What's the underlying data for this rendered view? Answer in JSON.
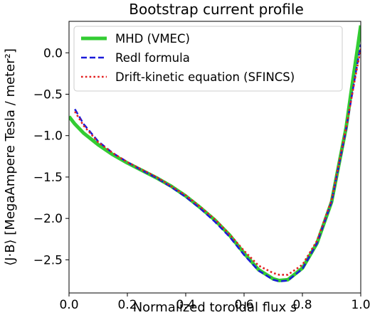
{
  "chart_data": {
    "type": "line",
    "title": "Bootstrap current profile",
    "xlabel_main": "Normalized toroidal flux ",
    "xlabel_var": "s",
    "ylabel": "⟨J·B⟩ [MegaAmpere Tesla / meter²]",
    "xlim": [
      0.0,
      1.0
    ],
    "ylim": [
      -2.9,
      0.38
    ],
    "xticks": [
      0.0,
      0.2,
      0.4,
      0.6,
      0.8,
      1.0
    ],
    "xtick_labels": [
      "0.0",
      "0.2",
      "0.4",
      "0.6",
      "0.8",
      "1.0"
    ],
    "yticks": [
      0.0,
      -0.5,
      -1.0,
      -1.5,
      -2.0,
      -2.5
    ],
    "ytick_labels": [
      "0.0",
      "−0.5",
      "−1.0",
      "−1.5",
      "−2.0",
      "−2.5"
    ],
    "grid": false,
    "legend_position": "top-right",
    "series": [
      {
        "name": "MHD (VMEC)",
        "color": "#33cc33",
        "style": "solid",
        "x": [
          0.0,
          0.02,
          0.05,
          0.1,
          0.15,
          0.2,
          0.25,
          0.3,
          0.35,
          0.4,
          0.45,
          0.5,
          0.55,
          0.6,
          0.65,
          0.7,
          0.72,
          0.75,
          0.8,
          0.85,
          0.9,
          0.95,
          0.97,
          0.99,
          1.0
        ],
        "y": [
          -0.77,
          -0.86,
          -0.97,
          -1.11,
          -1.23,
          -1.33,
          -1.42,
          -1.51,
          -1.61,
          -1.73,
          -1.87,
          -2.02,
          -2.2,
          -2.42,
          -2.62,
          -2.73,
          -2.75,
          -2.74,
          -2.6,
          -2.3,
          -1.8,
          -0.9,
          -0.4,
          0.08,
          0.33
        ]
      },
      {
        "name": "Redl formula",
        "color": "#1a1ad9",
        "style": "dashed",
        "x": [
          0.02,
          0.05,
          0.1,
          0.15,
          0.2,
          0.25,
          0.3,
          0.35,
          0.4,
          0.45,
          0.5,
          0.55,
          0.6,
          0.65,
          0.7,
          0.72,
          0.75,
          0.8,
          0.85,
          0.9,
          0.95,
          0.98,
          1.0
        ],
        "y": [
          -0.68,
          -0.86,
          -1.07,
          -1.21,
          -1.32,
          -1.42,
          -1.51,
          -1.62,
          -1.74,
          -1.88,
          -2.04,
          -2.22,
          -2.44,
          -2.63,
          -2.74,
          -2.76,
          -2.75,
          -2.61,
          -2.3,
          -1.8,
          -0.92,
          -0.3,
          0.1
        ]
      },
      {
        "name": "Drift-kinetic equation (SFINCS)",
        "color": "#e32020",
        "style": "dotted",
        "x": [
          0.02,
          0.05,
          0.1,
          0.15,
          0.2,
          0.25,
          0.3,
          0.35,
          0.4,
          0.45,
          0.5,
          0.55,
          0.6,
          0.65,
          0.7,
          0.72,
          0.75,
          0.8,
          0.85,
          0.9,
          0.95,
          0.98,
          1.0
        ],
        "y": [
          -0.71,
          -0.88,
          -1.08,
          -1.21,
          -1.32,
          -1.41,
          -1.5,
          -1.61,
          -1.72,
          -1.86,
          -2.01,
          -2.19,
          -2.39,
          -2.57,
          -2.66,
          -2.68,
          -2.68,
          -2.56,
          -2.27,
          -1.78,
          -0.9,
          -0.32,
          0.05
        ]
      }
    ]
  }
}
